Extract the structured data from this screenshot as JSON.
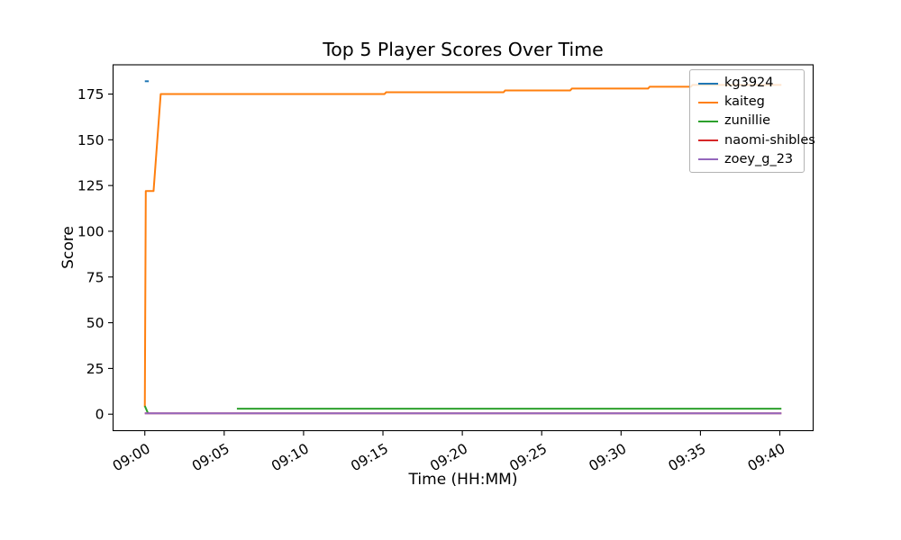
{
  "chart_data": {
    "type": "line",
    "title": "Top 5 Player Scores Over Time",
    "xlabel": "Time (HH:MM)",
    "ylabel": "Score",
    "x_unit": "minutes after 09:00",
    "xlim": [
      -2.0,
      42.1
    ],
    "ylim": [
      -9,
      191
    ],
    "x_ticks": [
      0,
      5,
      10,
      15,
      20,
      25,
      30,
      35,
      40
    ],
    "x_tick_labels": [
      "09:00",
      "09:05",
      "09:10",
      "09:15",
      "09:20",
      "09:25",
      "09:30",
      "09:35",
      "09:40"
    ],
    "y_ticks": [
      0,
      25,
      50,
      75,
      100,
      125,
      150,
      175
    ],
    "grid": false,
    "legend_position": "upper right",
    "series": [
      {
        "name": "kg3924",
        "color": "#1f77b4",
        "segments": [
          [
            [
              0,
              182
            ],
            [
              0.25,
              182
            ]
          ]
        ]
      },
      {
        "name": "kaiteg",
        "color": "#ff7f0e",
        "segments": [
          [
            [
              0,
              4
            ],
            [
              0.06,
              122
            ],
            [
              0.55,
              122
            ],
            [
              1.0,
              175
            ],
            [
              15.1,
              175
            ],
            [
              15.2,
              176
            ],
            [
              22.6,
              176
            ],
            [
              22.7,
              177
            ],
            [
              26.8,
              177
            ],
            [
              26.9,
              178
            ],
            [
              31.7,
              178
            ],
            [
              31.8,
              179
            ],
            [
              34.4,
              179
            ],
            [
              34.5,
              180
            ],
            [
              40.1,
              180
            ]
          ]
        ]
      },
      {
        "name": "zunillie",
        "color": "#2ca02c",
        "segments": [
          [
            [
              0,
              4.5
            ],
            [
              0.2,
              0.5
            ]
          ],
          [
            [
              5.8,
              3
            ],
            [
              40.1,
              3
            ]
          ]
        ]
      },
      {
        "name": "naomi-shibles",
        "color": "#d62728",
        "segments": [
          [
            [
              0,
              0.5
            ],
            [
              40.1,
              0.5
            ]
          ]
        ]
      },
      {
        "name": "zoey_g_23",
        "color": "#9467bd",
        "segments": [
          [
            [
              0,
              0.5
            ],
            [
              40.1,
              0.5
            ]
          ]
        ]
      }
    ]
  }
}
